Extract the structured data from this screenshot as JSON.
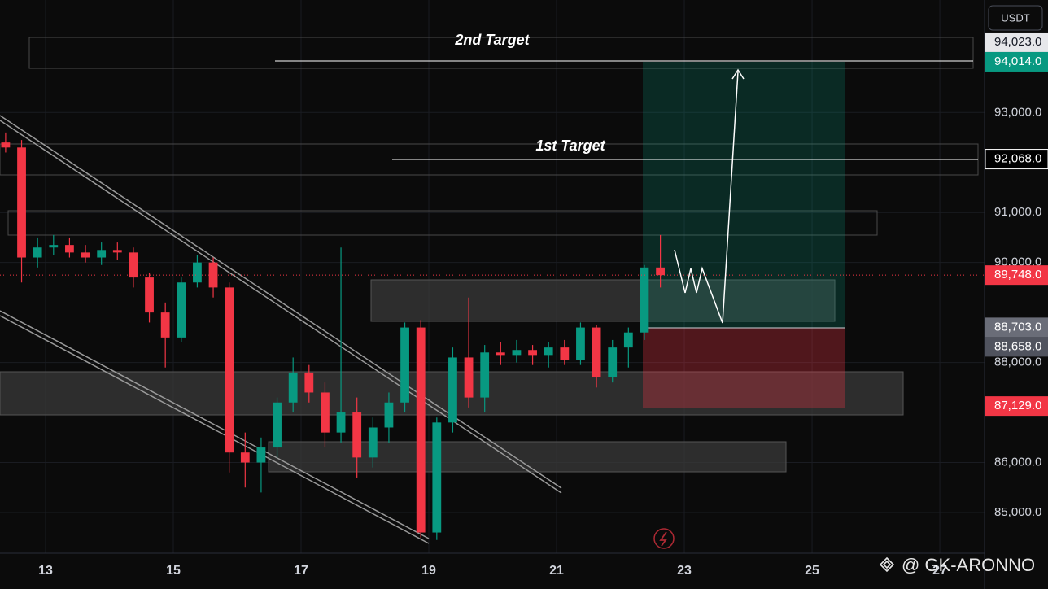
{
  "chart_data": {
    "type": "candlestick",
    "currency": "USDT",
    "watermark": "@ GK-ARONNO",
    "annotations": [
      "2nd Target",
      "1st Target"
    ],
    "up_color": "#089981",
    "down_color": "#f23645",
    "grid": true,
    "x": [
      12.375,
      12.625,
      12.875,
      13.125,
      13.375,
      13.625,
      13.875,
      14.125,
      14.375,
      14.625,
      14.875,
      15.125,
      15.375,
      15.625,
      15.875,
      16.125,
      16.375,
      16.625,
      16.875,
      17.125,
      17.375,
      17.625,
      17.875,
      18.125,
      18.375,
      18.625,
      18.875,
      19.125,
      19.375,
      19.625,
      19.875,
      20.125,
      20.375,
      20.625,
      20.875,
      21.125,
      21.375,
      21.625,
      21.875,
      22.125,
      22.375,
      22.625
    ],
    "open": [
      92400,
      92300,
      90100,
      90300,
      90350,
      90200,
      90100,
      90250,
      90200,
      89700,
      89000,
      88500,
      89600,
      90000,
      89500,
      86200,
      86000,
      86300,
      87200,
      87800,
      87400,
      86600,
      87000,
      86100,
      86700,
      87200,
      88700,
      84600,
      86800,
      88100,
      87300,
      88200,
      88150,
      88250,
      88150,
      88300,
      88050,
      88700,
      87700,
      88300,
      88600,
      89900
    ],
    "high": [
      92600,
      92450,
      90500,
      90550,
      90500,
      90350,
      90400,
      90400,
      90300,
      89800,
      89200,
      89700,
      90150,
      90100,
      89600,
      86600,
      86500,
      87300,
      88100,
      87950,
      87600,
      90300,
      87300,
      86900,
      87400,
      88800,
      88850,
      86900,
      88300,
      89300,
      88350,
      88400,
      88450,
      88350,
      88400,
      88450,
      88800,
      88750,
      88450,
      88700,
      89950,
      90550
    ],
    "low": [
      92200,
      89600,
      89900,
      90150,
      90100,
      90000,
      89950,
      90050,
      89500,
      88800,
      87900,
      88400,
      89500,
      89300,
      85800,
      85500,
      85400,
      86100,
      87000,
      87200,
      86300,
      86400,
      85700,
      85900,
      86400,
      87000,
      84500,
      84450,
      86600,
      87100,
      87000,
      87950,
      88000,
      87950,
      87900,
      87950,
      87950,
      87500,
      87600,
      87900,
      88450,
      89500
    ],
    "close": [
      92300,
      90100,
      90300,
      90350,
      90200,
      90100,
      90250,
      90200,
      89700,
      89000,
      88500,
      89600,
      90000,
      89500,
      86200,
      86000,
      86300,
      87200,
      87800,
      87400,
      86600,
      87000,
      86100,
      86700,
      87200,
      88700,
      84600,
      86800,
      88100,
      87300,
      88200,
      88150,
      88250,
      88150,
      88300,
      88050,
      88700,
      87700,
      88300,
      88600,
      89900,
      89748
    ],
    "xlim": [
      12.287,
      27.7
    ],
    "xticks": [
      13,
      15,
      17,
      19,
      21,
      23,
      25,
      27
    ],
    "ylim": [
      84186,
      95250
    ],
    "yticks": [
      {
        "value": 85000,
        "label": "85,000.0"
      },
      {
        "value": 86000,
        "label": "86,000.0"
      },
      {
        "value": 88000,
        "label": "88,000.0"
      },
      {
        "value": 90000,
        "label": "90,000.0"
      },
      {
        "value": 91000,
        "label": "91,000.0"
      },
      {
        "value": 93000,
        "label": "93,000.0"
      }
    ],
    "price_labels": [
      {
        "value": 94023,
        "label": "94,023.0",
        "color": "#e6e7ea",
        "text_color": "#131722"
      },
      {
        "value": 94014,
        "label": "94,014.0",
        "color": "#089981",
        "text_color": "#ffffff"
      },
      {
        "value": 92068,
        "label": "92,068.0",
        "color": "#000000",
        "text_color": "#ffffff",
        "outline": "#ffffff"
      },
      {
        "value": 89748,
        "label": "89,748.0",
        "color": "#f23645",
        "text_color": "#ffffff"
      },
      {
        "value": 88703,
        "label": "88,703.0",
        "color": "#6a6d78",
        "text_color": "#ffffff"
      },
      {
        "value": 88658,
        "label": "88,658.0",
        "color": "#50535e",
        "text_color": "#ffffff"
      },
      {
        "value": 87129,
        "label": "87,129.0",
        "color": "#f23645",
        "text_color": "#ffffff"
      }
    ]
  }
}
